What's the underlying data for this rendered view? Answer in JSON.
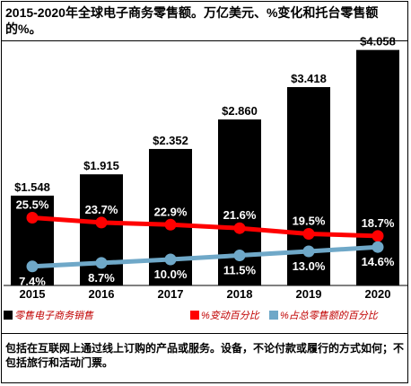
{
  "title": "2015-2020年全球电子商务零售额。万亿美元、%变化和托台零售额的%。",
  "legend": {
    "sales": "零售电子商务销售",
    "change": "%变动百分比",
    "share": "%占总零售额的百分比"
  },
  "footnote": "包括在互联网上通过线上订购的产品或服务。设备，不论付款或履行的方式如何；不包括旅行和活动门票。",
  "colors": {
    "bar": "#000000",
    "change_line": "#ff0000",
    "share_line": "#6fa8c8"
  },
  "chart_data": {
    "type": "bar",
    "categories": [
      "2015",
      "2016",
      "2017",
      "2018",
      "2019",
      "2020"
    ],
    "series": [
      {
        "values": [
          1.548,
          1.915,
          2.352,
          2.86,
          3.418,
          4.058
        ],
        "labels": [
          "$1.548",
          "$1.915",
          "$2.352",
          "$2.860",
          "$3.418",
          "$4.058"
        ]
      },
      {
        "type": "line",
        "values": [
          25.5,
          23.7,
          22.9,
          21.6,
          19.5,
          18.7
        ],
        "labels": [
          "25.5%",
          "23.7%",
          "22.9%",
          "21.6%",
          "19.5%",
          "18.7%"
        ]
      },
      {
        "type": "line",
        "values": [
          7.4,
          8.7,
          10.0,
          11.5,
          13.0,
          14.6
        ],
        "labels": [
          "7.4%",
          "8.7%",
          "10.0%",
          "11.5%",
          "13.0%",
          "14.6%"
        ]
      }
    ],
    "xlabel": "",
    "ylabel": "",
    "ylim": [
      0,
      4.3
    ],
    "grid": false,
    "legend_position": "bottom"
  }
}
